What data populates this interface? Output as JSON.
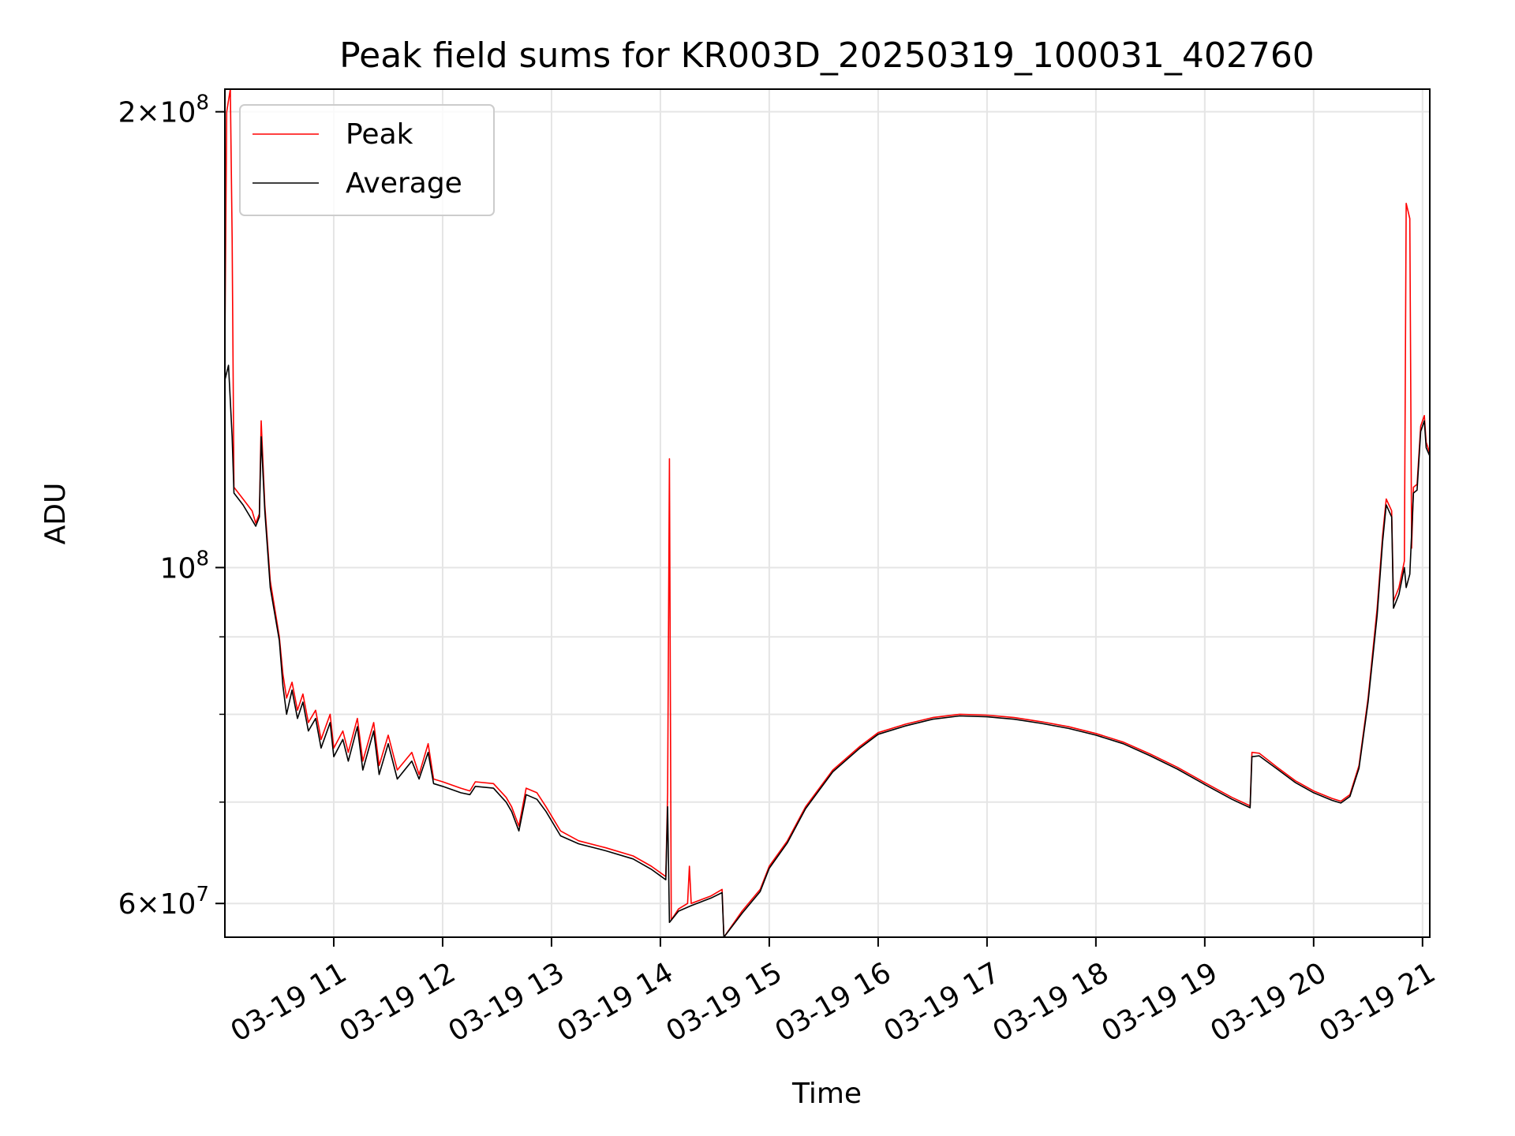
{
  "chart_data": {
    "type": "line",
    "title": "Peak field sums for KR003D_20250319_100031_402760",
    "xlabel": "Time",
    "ylabel": "ADU",
    "x_range": [
      "2025-03-19 10:00",
      "2025-03-19 21:04"
    ],
    "y_range": [
      57000000,
      207000000
    ],
    "y_scale": "log",
    "grid": true,
    "legend_position": "upper-left",
    "x_ticks": [
      {
        "t": "2025-03-19 11:00",
        "label": "03-19 11"
      },
      {
        "t": "2025-03-19 12:00",
        "label": "03-19 12"
      },
      {
        "t": "2025-03-19 13:00",
        "label": "03-19 13"
      },
      {
        "t": "2025-03-19 14:00",
        "label": "03-19 14"
      },
      {
        "t": "2025-03-19 15:00",
        "label": "03-19 15"
      },
      {
        "t": "2025-03-19 16:00",
        "label": "03-19 16"
      },
      {
        "t": "2025-03-19 17:00",
        "label": "03-19 17"
      },
      {
        "t": "2025-03-19 18:00",
        "label": "03-19 18"
      },
      {
        "t": "2025-03-19 19:00",
        "label": "03-19 19"
      },
      {
        "t": "2025-03-19 20:00",
        "label": "03-19 20"
      },
      {
        "t": "2025-03-19 21:00",
        "label": "03-19 21"
      }
    ],
    "y_major_ticks": [
      {
        "value": 60000000,
        "mant": "6",
        "exp": "7"
      },
      {
        "value": 100000000,
        "mant": "",
        "exp": "8"
      },
      {
        "value": 200000000,
        "mant": "2",
        "exp": "8"
      }
    ],
    "y_minor_ticks": [
      70000000,
      80000000,
      90000000
    ],
    "series": [
      {
        "name": "Peak",
        "color": "#ff0000",
        "points": [
          [
            "2025-03-19 10:00",
            140000000
          ],
          [
            "2025-03-19 10:01",
            200000000
          ],
          [
            "2025-03-19 10:03",
            207000000
          ],
          [
            "2025-03-19 10:04",
            165000000
          ],
          [
            "2025-03-19 10:05",
            113000000
          ],
          [
            "2025-03-19 10:10",
            111000000
          ],
          [
            "2025-03-19 10:15",
            109000000
          ],
          [
            "2025-03-19 10:17",
            107000000
          ],
          [
            "2025-03-19 10:19",
            108500000
          ],
          [
            "2025-03-19 10:20",
            125000000
          ],
          [
            "2025-03-19 10:22",
            110000000
          ],
          [
            "2025-03-19 10:25",
            98000000
          ],
          [
            "2025-03-19 10:30",
            90000000
          ],
          [
            "2025-03-19 10:32",
            85000000
          ],
          [
            "2025-03-19 10:34",
            82000000
          ],
          [
            "2025-03-19 10:37",
            84000000
          ],
          [
            "2025-03-19 10:40",
            80500000
          ],
          [
            "2025-03-19 10:43",
            82500000
          ],
          [
            "2025-03-19 10:46",
            79000000
          ],
          [
            "2025-03-19 10:50",
            80500000
          ],
          [
            "2025-03-19 10:53",
            77000000
          ],
          [
            "2025-03-19 10:58",
            80000000
          ],
          [
            "2025-03-19 11:00",
            76000000
          ],
          [
            "2025-03-19 11:05",
            78000000
          ],
          [
            "2025-03-19 11:08",
            75500000
          ],
          [
            "2025-03-19 11:13",
            79500000
          ],
          [
            "2025-03-19 11:16",
            74500000
          ],
          [
            "2025-03-19 11:22",
            79000000
          ],
          [
            "2025-03-19 11:25",
            74000000
          ],
          [
            "2025-03-19 11:30",
            77500000
          ],
          [
            "2025-03-19 11:35",
            73500000
          ],
          [
            "2025-03-19 11:43",
            75500000
          ],
          [
            "2025-03-19 11:47",
            73000000
          ],
          [
            "2025-03-19 11:52",
            76500000
          ],
          [
            "2025-03-19 11:55",
            72500000
          ],
          [
            "2025-03-19 12:00",
            72200000
          ],
          [
            "2025-03-19 12:10",
            71500000
          ],
          [
            "2025-03-19 12:15",
            71200000
          ],
          [
            "2025-03-19 12:18",
            72200000
          ],
          [
            "2025-03-19 12:28",
            72000000
          ],
          [
            "2025-03-19 12:35",
            70500000
          ],
          [
            "2025-03-19 12:38",
            69500000
          ],
          [
            "2025-03-19 12:42",
            67500000
          ],
          [
            "2025-03-19 12:46",
            71500000
          ],
          [
            "2025-03-19 12:52",
            71000000
          ],
          [
            "2025-03-19 12:57",
            69500000
          ],
          [
            "2025-03-19 13:05",
            67000000
          ],
          [
            "2025-03-19 13:15",
            66000000
          ],
          [
            "2025-03-19 13:30",
            65300000
          ],
          [
            "2025-03-19 13:45",
            64500000
          ],
          [
            "2025-03-19 13:55",
            63500000
          ],
          [
            "2025-03-19 14:03",
            62500000
          ],
          [
            "2025-03-19 14:04",
            71000000
          ],
          [
            "2025-03-19 14:05",
            118000000
          ],
          [
            "2025-03-19 14:06",
            58500000
          ],
          [
            "2025-03-19 14:10",
            59500000
          ],
          [
            "2025-03-19 14:15",
            60000000
          ],
          [
            "2025-03-19 14:16",
            63500000
          ],
          [
            "2025-03-19 14:17",
            60000000
          ],
          [
            "2025-03-19 14:28",
            60700000
          ],
          [
            "2025-03-19 14:34",
            61300000
          ],
          [
            "2025-03-19 14:35",
            57000000
          ],
          [
            "2025-03-19 14:45",
            59300000
          ],
          [
            "2025-03-19 14:55",
            61300000
          ],
          [
            "2025-03-19 15:00",
            63500000
          ],
          [
            "2025-03-19 15:10",
            66000000
          ],
          [
            "2025-03-19 15:20",
            69500000
          ],
          [
            "2025-03-19 15:35",
            73500000
          ],
          [
            "2025-03-19 15:50",
            76200000
          ],
          [
            "2025-03-19 16:00",
            77800000
          ],
          [
            "2025-03-19 16:15",
            78800000
          ],
          [
            "2025-03-19 16:30",
            79600000
          ],
          [
            "2025-03-19 16:45",
            80000000
          ],
          [
            "2025-03-19 17:00",
            79900000
          ],
          [
            "2025-03-19 17:15",
            79600000
          ],
          [
            "2025-03-19 17:30",
            79100000
          ],
          [
            "2025-03-19 17:45",
            78500000
          ],
          [
            "2025-03-19 18:00",
            77700000
          ],
          [
            "2025-03-19 18:15",
            76700000
          ],
          [
            "2025-03-19 18:30",
            75300000
          ],
          [
            "2025-03-19 18:45",
            73800000
          ],
          [
            "2025-03-19 19:00",
            72100000
          ],
          [
            "2025-03-19 19:15",
            70500000
          ],
          [
            "2025-03-19 19:25",
            69600000
          ],
          [
            "2025-03-19 19:26",
            75500000
          ],
          [
            "2025-03-19 19:30",
            75400000
          ],
          [
            "2025-03-19 19:40",
            73800000
          ],
          [
            "2025-03-19 19:50",
            72300000
          ],
          [
            "2025-03-19 20:00",
            71200000
          ],
          [
            "2025-03-19 20:10",
            70400000
          ],
          [
            "2025-03-19 20:15",
            70100000
          ],
          [
            "2025-03-19 20:20",
            70800000
          ],
          [
            "2025-03-19 20:25",
            74000000
          ],
          [
            "2025-03-19 20:30",
            82000000
          ],
          [
            "2025-03-19 20:35",
            94000000
          ],
          [
            "2025-03-19 20:38",
            105000000
          ],
          [
            "2025-03-19 20:40",
            111000000
          ],
          [
            "2025-03-19 20:43",
            109000000
          ],
          [
            "2025-03-19 20:44",
            95000000
          ],
          [
            "2025-03-19 20:47",
            97000000
          ],
          [
            "2025-03-19 20:50",
            101000000
          ],
          [
            "2025-03-19 20:51",
            174000000
          ],
          [
            "2025-03-19 20:53",
            170000000
          ],
          [
            "2025-03-19 20:54",
            103000000
          ],
          [
            "2025-03-19 20:55",
            113000000
          ],
          [
            "2025-03-19 20:57",
            113500000
          ],
          [
            "2025-03-19 20:59",
            124000000
          ],
          [
            "2025-03-19 21:01",
            126000000
          ],
          [
            "2025-03-19 21:02",
            121000000
          ],
          [
            "2025-03-19 21:04",
            119000000
          ]
        ]
      },
      {
        "name": "Average",
        "color": "#000000",
        "points": [
          [
            "2025-03-19 10:00",
            133000000
          ],
          [
            "2025-03-19 10:02",
            136000000
          ],
          [
            "2025-03-19 10:04",
            122000000
          ],
          [
            "2025-03-19 10:05",
            112000000
          ],
          [
            "2025-03-19 10:10",
            110000000
          ],
          [
            "2025-03-19 10:15",
            107500000
          ],
          [
            "2025-03-19 10:17",
            106500000
          ],
          [
            "2025-03-19 10:19",
            108000000
          ],
          [
            "2025-03-19 10:20",
            122000000
          ],
          [
            "2025-03-19 10:22",
            109000000
          ],
          [
            "2025-03-19 10:25",
            97000000
          ],
          [
            "2025-03-19 10:30",
            89500000
          ],
          [
            "2025-03-19 10:32",
            83500000
          ],
          [
            "2025-03-19 10:34",
            80000000
          ],
          [
            "2025-03-19 10:37",
            83000000
          ],
          [
            "2025-03-19 10:40",
            79500000
          ],
          [
            "2025-03-19 10:43",
            81500000
          ],
          [
            "2025-03-19 10:46",
            78000000
          ],
          [
            "2025-03-19 10:50",
            79500000
          ],
          [
            "2025-03-19 10:53",
            76000000
          ],
          [
            "2025-03-19 10:58",
            79000000
          ],
          [
            "2025-03-19 11:00",
            75000000
          ],
          [
            "2025-03-19 11:05",
            77000000
          ],
          [
            "2025-03-19 11:08",
            74500000
          ],
          [
            "2025-03-19 11:13",
            78500000
          ],
          [
            "2025-03-19 11:16",
            73500000
          ],
          [
            "2025-03-19 11:22",
            78000000
          ],
          [
            "2025-03-19 11:25",
            73000000
          ],
          [
            "2025-03-19 11:30",
            76500000
          ],
          [
            "2025-03-19 11:35",
            72500000
          ],
          [
            "2025-03-19 11:43",
            74500000
          ],
          [
            "2025-03-19 11:47",
            72500000
          ],
          [
            "2025-03-19 11:52",
            75500000
          ],
          [
            "2025-03-19 11:55",
            72000000
          ],
          [
            "2025-03-19 12:00",
            71700000
          ],
          [
            "2025-03-19 12:10",
            71000000
          ],
          [
            "2025-03-19 12:15",
            70800000
          ],
          [
            "2025-03-19 12:18",
            71700000
          ],
          [
            "2025-03-19 12:28",
            71500000
          ],
          [
            "2025-03-19 12:35",
            70000000
          ],
          [
            "2025-03-19 12:38",
            69000000
          ],
          [
            "2025-03-19 12:42",
            67000000
          ],
          [
            "2025-03-19 12:46",
            70800000
          ],
          [
            "2025-03-19 12:52",
            70300000
          ],
          [
            "2025-03-19 12:57",
            69000000
          ],
          [
            "2025-03-19 13:05",
            66500000
          ],
          [
            "2025-03-19 13:15",
            65700000
          ],
          [
            "2025-03-19 13:30",
            65000000
          ],
          [
            "2025-03-19 13:45",
            64200000
          ],
          [
            "2025-03-19 13:55",
            63200000
          ],
          [
            "2025-03-19 14:03",
            62200000
          ],
          [
            "2025-03-19 14:04",
            69500000
          ],
          [
            "2025-03-19 14:05",
            58300000
          ],
          [
            "2025-03-19 14:10",
            59300000
          ],
          [
            "2025-03-19 14:17",
            59800000
          ],
          [
            "2025-03-19 14:28",
            60500000
          ],
          [
            "2025-03-19 14:34",
            61000000
          ],
          [
            "2025-03-19 14:35",
            57000000
          ],
          [
            "2025-03-19 14:45",
            59100000
          ],
          [
            "2025-03-19 14:55",
            61100000
          ],
          [
            "2025-03-19 15:00",
            63300000
          ],
          [
            "2025-03-19 15:10",
            65800000
          ],
          [
            "2025-03-19 15:20",
            69300000
          ],
          [
            "2025-03-19 15:35",
            73300000
          ],
          [
            "2025-03-19 15:50",
            76000000
          ],
          [
            "2025-03-19 16:00",
            77600000
          ],
          [
            "2025-03-19 16:15",
            78600000
          ],
          [
            "2025-03-19 16:30",
            79400000
          ],
          [
            "2025-03-19 16:45",
            79800000
          ],
          [
            "2025-03-19 17:00",
            79700000
          ],
          [
            "2025-03-19 17:15",
            79400000
          ],
          [
            "2025-03-19 17:30",
            78900000
          ],
          [
            "2025-03-19 17:45",
            78300000
          ],
          [
            "2025-03-19 18:00",
            77500000
          ],
          [
            "2025-03-19 18:15",
            76500000
          ],
          [
            "2025-03-19 18:30",
            75100000
          ],
          [
            "2025-03-19 18:45",
            73600000
          ],
          [
            "2025-03-19 19:00",
            71900000
          ],
          [
            "2025-03-19 19:15",
            70300000
          ],
          [
            "2025-03-19 19:25",
            69400000
          ],
          [
            "2025-03-19 19:26",
            75000000
          ],
          [
            "2025-03-19 19:30",
            75100000
          ],
          [
            "2025-03-19 19:40",
            73600000
          ],
          [
            "2025-03-19 19:50",
            72100000
          ],
          [
            "2025-03-19 20:00",
            71000000
          ],
          [
            "2025-03-19 20:10",
            70200000
          ],
          [
            "2025-03-19 20:15",
            69900000
          ],
          [
            "2025-03-19 20:20",
            70600000
          ],
          [
            "2025-03-19 20:25",
            73700000
          ],
          [
            "2025-03-19 20:30",
            81500000
          ],
          [
            "2025-03-19 20:35",
            93000000
          ],
          [
            "2025-03-19 20:38",
            104000000
          ],
          [
            "2025-03-19 20:40",
            110000000
          ],
          [
            "2025-03-19 20:43",
            108000000
          ],
          [
            "2025-03-19 20:44",
            94000000
          ],
          [
            "2025-03-19 20:47",
            96000000
          ],
          [
            "2025-03-19 20:50",
            100000000
          ],
          [
            "2025-03-19 20:51",
            97000000
          ],
          [
            "2025-03-19 20:53",
            99000000
          ],
          [
            "2025-03-19 20:55",
            112000000
          ],
          [
            "2025-03-19 20:57",
            112500000
          ],
          [
            "2025-03-19 20:59",
            123000000
          ],
          [
            "2025-03-19 21:01",
            125000000
          ],
          [
            "2025-03-19 21:02",
            120000000
          ],
          [
            "2025-03-19 21:04",
            118500000
          ]
        ]
      }
    ]
  }
}
